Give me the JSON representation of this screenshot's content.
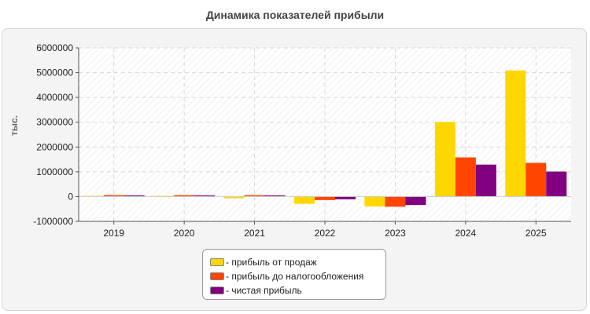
{
  "chart_data": {
    "type": "bar",
    "title": "Динамика показателей прибыли",
    "ylabel": "тыс.",
    "xlabel": "",
    "categories": [
      "2019",
      "2020",
      "2021",
      "2022",
      "2023",
      "2024",
      "2025"
    ],
    "ylim": [
      -1000000,
      6000000
    ],
    "yticks": [
      6000000,
      5000000,
      4000000,
      3000000,
      2000000,
      1000000,
      0,
      -1000000
    ],
    "ytick_labels": [
      "6000000",
      "5000000",
      "4000000",
      "3000000",
      "2000000",
      "1000000",
      "0",
      "-1000000"
    ],
    "grid": true,
    "legend_position": "bottom-center",
    "series": [
      {
        "name": "- прибыль от продаж",
        "color": "#ffd700",
        "values": [
          30000,
          30000,
          -70000,
          -290000,
          -400000,
          3010000,
          5090000
        ]
      },
      {
        "name": "- прибыль до налогообложения",
        "color": "#ff4500",
        "values": [
          60000,
          60000,
          60000,
          -140000,
          -410000,
          1580000,
          1360000
        ]
      },
      {
        "name": "- чистая прибыль",
        "color": "#800080",
        "values": [
          50000,
          50000,
          50000,
          -110000,
          -340000,
          1290000,
          1010000
        ]
      }
    ]
  }
}
